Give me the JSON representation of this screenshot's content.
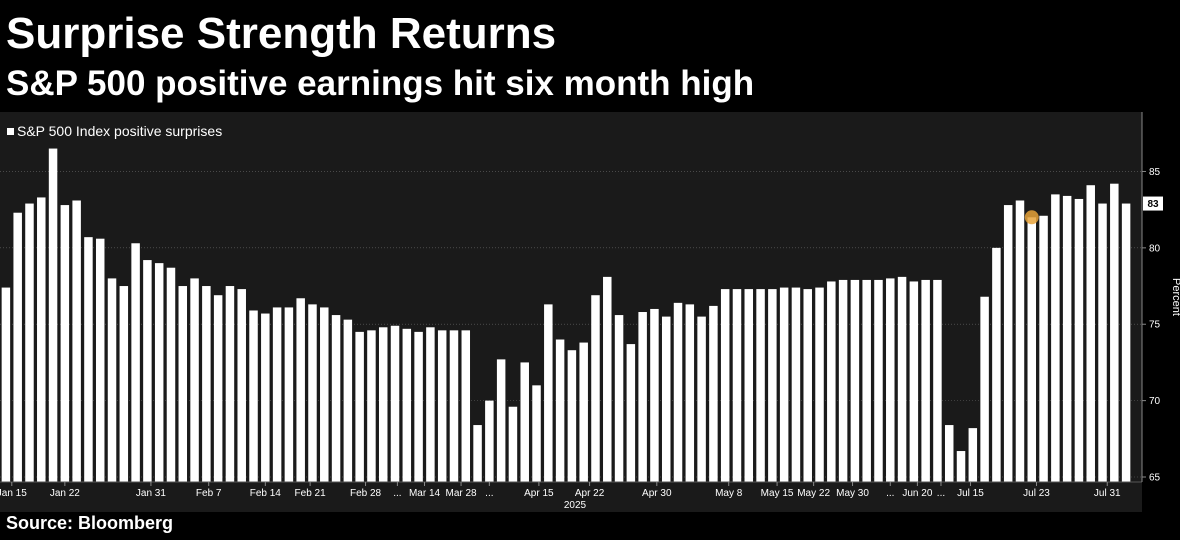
{
  "header": {
    "title": "Surprise Strength Returns",
    "subtitle": "S&P 500 positive earnings hit six month high"
  },
  "footer": {
    "source": "Source: Bloomberg"
  },
  "colors": {
    "background": "#000000",
    "plot_background": "#1a1a1a",
    "bars": "#ffffff",
    "highlight": "#e8a33a",
    "grid": "#666666"
  },
  "chart_data": {
    "type": "bar",
    "title": "Surprise Strength Returns",
    "subtitle": "S&P 500 positive earnings hit six month high",
    "ylabel": "Percent",
    "ylim": [
      65,
      88.5
    ],
    "yticks": [
      65,
      70,
      75,
      80,
      85
    ],
    "grid": true,
    "legend_position": "top-left",
    "last_value_label": "83",
    "x_period_label": "2025",
    "highlight_index": 87,
    "xtick_labels": [
      {
        "i": 0.5,
        "label": "Jan 15"
      },
      {
        "i": 5.0,
        "label": "Jan 22"
      },
      {
        "i": 12.3,
        "label": "Jan 31"
      },
      {
        "i": 17.2,
        "label": "Feb 7"
      },
      {
        "i": 22.0,
        "label": "Feb 14"
      },
      {
        "i": 25.8,
        "label": "Feb 21"
      },
      {
        "i": 30.5,
        "label": "Feb 28"
      },
      {
        "i": 33.2,
        "label": "..."
      },
      {
        "i": 35.5,
        "label": "Mar 14"
      },
      {
        "i": 38.6,
        "label": "Mar 28"
      },
      {
        "i": 41.0,
        "label": "..."
      },
      {
        "i": 45.2,
        "label": "Apr 15"
      },
      {
        "i": 49.5,
        "label": "Apr 22"
      },
      {
        "i": 55.2,
        "label": "Apr 30"
      },
      {
        "i": 61.3,
        "label": "May 8"
      },
      {
        "i": 65.4,
        "label": "May 15"
      },
      {
        "i": 68.5,
        "label": "May 22"
      },
      {
        "i": 71.8,
        "label": "May 30"
      },
      {
        "i": 75.0,
        "label": "..."
      },
      {
        "i": 77.3,
        "label": "Jun 20"
      },
      {
        "i": 79.3,
        "label": "..."
      },
      {
        "i": 81.8,
        "label": "Jul 15"
      },
      {
        "i": 87.4,
        "label": "Jul 23"
      },
      {
        "i": 93.4,
        "label": "Jul 31"
      }
    ],
    "series": [
      {
        "name": "S&P 500 Index positive surprises",
        "values": [
          77.4,
          82.3,
          82.9,
          83.3,
          86.5,
          82.8,
          83.1,
          80.7,
          80.6,
          78.0,
          77.5,
          80.3,
          79.2,
          79.0,
          78.7,
          77.5,
          78.0,
          77.5,
          76.9,
          77.5,
          77.3,
          75.9,
          75.7,
          76.1,
          76.1,
          76.7,
          76.3,
          76.1,
          75.6,
          75.3,
          74.5,
          74.6,
          74.8,
          74.9,
          74.7,
          74.5,
          74.8,
          74.6,
          74.6,
          74.6,
          68.4,
          70.0,
          72.7,
          69.6,
          72.5,
          71.0,
          76.3,
          74.0,
          73.3,
          73.8,
          76.9,
          78.1,
          75.6,
          73.7,
          75.8,
          76.0,
          75.5,
          76.4,
          76.3,
          75.5,
          76.2,
          77.3,
          77.3,
          77.3,
          77.3,
          77.3,
          77.4,
          77.4,
          77.3,
          77.4,
          77.8,
          77.9,
          77.9,
          77.9,
          77.9,
          78.0,
          78.1,
          77.8,
          77.9,
          77.9,
          68.4,
          66.7,
          68.2,
          76.8,
          80.0,
          82.8,
          83.1,
          82.0,
          82.1,
          83.5,
          83.4,
          83.2,
          84.1,
          82.9,
          84.2,
          82.9
        ]
      }
    ]
  }
}
